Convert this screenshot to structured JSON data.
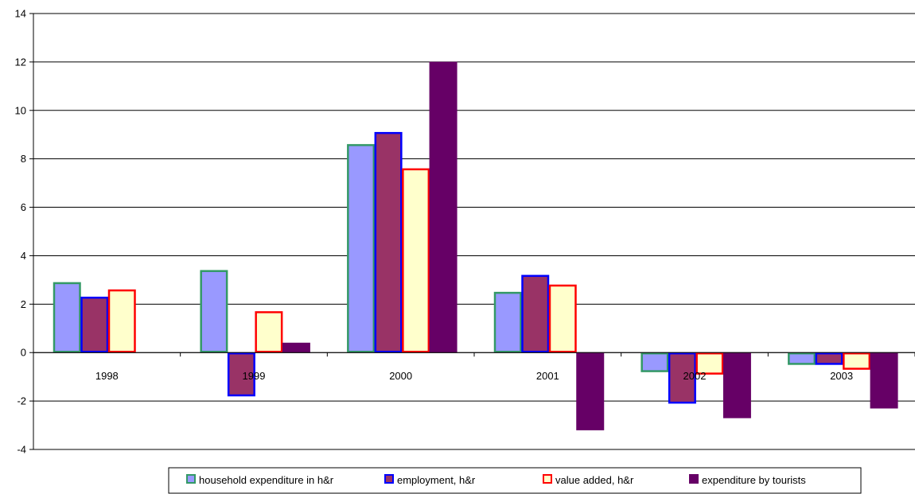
{
  "chart_data": {
    "type": "bar",
    "title": "",
    "xlabel": "",
    "ylabel": "",
    "categories": [
      "1998",
      "1999",
      "2000",
      "2001",
      "2002",
      "2003"
    ],
    "ylim": [
      -4,
      14
    ],
    "yticks": [
      -4,
      -2,
      0,
      2,
      4,
      6,
      8,
      10,
      12,
      14
    ],
    "grid": true,
    "legend_position": "bottom",
    "series": [
      {
        "name": "household expenditure in h&r",
        "values": [
          2.9,
          3.4,
          8.6,
          2.5,
          -0.8,
          -0.5
        ],
        "fill": "#9999ff",
        "stroke": "#339966"
      },
      {
        "name": "employment, h&r",
        "values": [
          2.3,
          -1.8,
          9.1,
          3.2,
          -2.1,
          -0.5
        ],
        "fill": "#993366",
        "stroke": "#0000ff"
      },
      {
        "name": "value added, h&r",
        "values": [
          2.6,
          1.7,
          7.6,
          2.8,
          -0.9,
          -0.7
        ],
        "fill": "#ffffcc",
        "stroke": "#ff0000"
      },
      {
        "name": "expenditure by tourists",
        "values": [
          null,
          0.4,
          12.0,
          -3.2,
          -2.7,
          -2.3
        ],
        "fill": "#660066",
        "stroke": "#660066"
      }
    ]
  }
}
